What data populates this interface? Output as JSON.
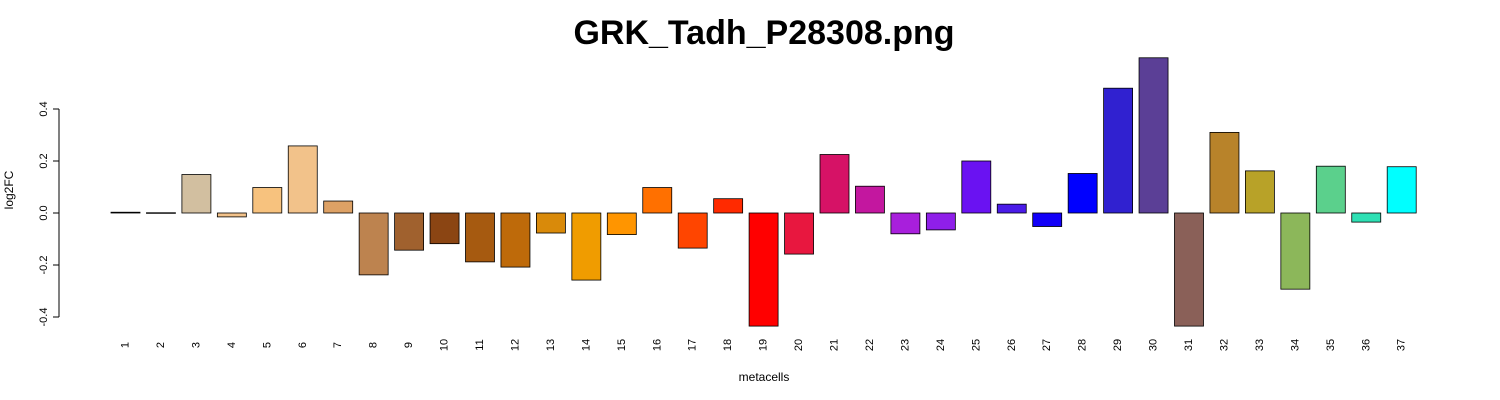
{
  "chart_data": {
    "type": "bar",
    "title": "GRK_Tadh_P28308.png",
    "xlabel": "metacells",
    "ylabel": "log2FC",
    "ylim": [
      -0.42,
      0.6
    ],
    "yticks": [
      -0.4,
      -0.2,
      0.0,
      0.2,
      0.4
    ],
    "ytick_labels": [
      "-0.4",
      "-0.2",
      "0.0",
      "0.2",
      "0.4"
    ],
    "grid": false,
    "categories": [
      "1",
      "2",
      "3",
      "4",
      "5",
      "6",
      "7",
      "8",
      "9",
      "10",
      "11",
      "12",
      "13",
      "14",
      "15",
      "16",
      "17",
      "18",
      "19",
      "20",
      "21",
      "22",
      "23",
      "24",
      "25",
      "26",
      "27",
      "28",
      "29",
      "30",
      "31",
      "32",
      "33",
      "34",
      "35",
      "36",
      "37"
    ],
    "values": [
      0.003,
      0.001,
      0.148,
      -0.015,
      0.098,
      0.258,
      0.046,
      -0.238,
      -0.143,
      -0.118,
      -0.188,
      -0.208,
      -0.077,
      -0.258,
      -0.083,
      0.098,
      -0.135,
      0.055,
      -0.435,
      -0.158,
      0.225,
      0.103,
      -0.08,
      -0.065,
      0.2,
      0.034,
      -0.052,
      0.152,
      0.48,
      0.597,
      -0.435,
      0.31,
      0.162,
      -0.293,
      0.18,
      -0.035,
      0.178
    ],
    "colors": [
      "#000000",
      "#FFFFFF",
      "#D2BFA0",
      "#F2C28A",
      "#F7C27E",
      "#F2C28A",
      "#DDA165",
      "#BD834F",
      "#A0612E",
      "#8B4513",
      "#A65A10",
      "#BE6A0A",
      "#D98A0A",
      "#F09C00",
      "#FF9500",
      "#FF7000",
      "#FF4500",
      "#FF2A00",
      "#FF0000",
      "#E8173F",
      "#D61266",
      "#C3179F",
      "#A81FDC",
      "#8F1FE9",
      "#6A12F2",
      "#4A1BE8",
      "#1200F8",
      "#0000FF",
      "#3021D0",
      "#5B3F96",
      "#8A6058",
      "#B8832A",
      "#B8A228",
      "#8CB75A",
      "#5BD08C",
      "#2EE0B4",
      "#00FFFF"
    ]
  }
}
